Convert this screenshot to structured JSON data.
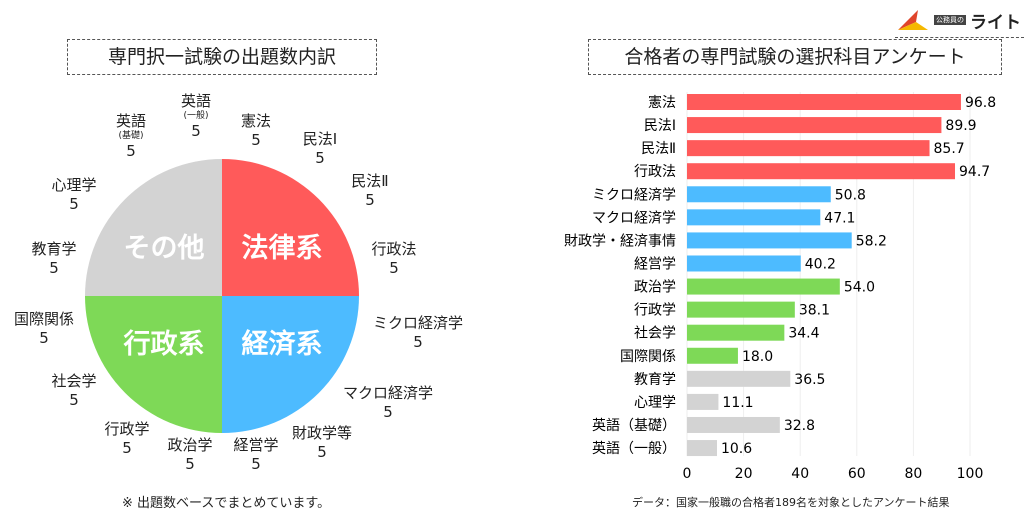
{
  "logo": {
    "small": "公務員の",
    "big": "ライト"
  },
  "left": {
    "title": "専門択一試験の出題数内訳",
    "note": "※ 出題数ベースでまとめています。",
    "quadrants": [
      {
        "label": "法律系",
        "color": "#FF5A5A"
      },
      {
        "label": "経済系",
        "color": "#4DBBFF"
      },
      {
        "label": "行政系",
        "color": "#7ED957"
      },
      {
        "label": "その他",
        "color": "#D3D3D3"
      }
    ],
    "subjects": [
      {
        "name": "英語",
        "sub": "(一般)",
        "count": "5"
      },
      {
        "name": "憲法",
        "count": "5"
      },
      {
        "name": "民法Ⅰ",
        "count": "5"
      },
      {
        "name": "民法Ⅱ",
        "count": "5"
      },
      {
        "name": "行政法",
        "count": "5"
      },
      {
        "name": "ミクロ経済学",
        "count": "5"
      },
      {
        "name": "マクロ経済学",
        "count": "5"
      },
      {
        "name": "財政学等",
        "count": "5"
      },
      {
        "name": "経営学",
        "count": "5"
      },
      {
        "name": "政治学",
        "count": "5"
      },
      {
        "name": "行政学",
        "count": "5"
      },
      {
        "name": "社会学",
        "count": "5"
      },
      {
        "name": "国際関係",
        "count": "5"
      },
      {
        "name": "教育学",
        "count": "5"
      },
      {
        "name": "心理学",
        "count": "5"
      },
      {
        "name": "英語",
        "sub": "(基礎)",
        "count": "5"
      }
    ]
  },
  "chart_data": {
    "type": "bar",
    "orientation": "horizontal",
    "title": "合格者の専門試験の選択科目アンケート",
    "categories": [
      "憲法",
      "民法Ⅰ",
      "民法Ⅱ",
      "行政法",
      "ミクロ経済学",
      "マクロ経済学",
      "財政学・経済事情",
      "経営学",
      "政治学",
      "行政学",
      "社会学",
      "国際関係",
      "教育学",
      "心理学",
      "英語（基礎）",
      "英語（一般）"
    ],
    "values": [
      96.8,
      89.9,
      85.7,
      94.7,
      50.8,
      47.1,
      58.2,
      40.2,
      54.0,
      38.1,
      34.4,
      18.0,
      36.5,
      11.1,
      32.8,
      10.6
    ],
    "value_labels": [
      "96.8",
      "89.9",
      "85.7",
      "94.7",
      "50.8",
      "47.1",
      "58.2",
      "40.2",
      "54.0",
      "38.1",
      "34.4",
      "18.0",
      "36.5",
      "11.1",
      "32.8",
      "10.6"
    ],
    "colors": [
      "#FF5A5A",
      "#FF5A5A",
      "#FF5A5A",
      "#FF5A5A",
      "#4DBBFF",
      "#4DBBFF",
      "#4DBBFF",
      "#4DBBFF",
      "#7ED957",
      "#7ED957",
      "#7ED957",
      "#7ED957",
      "#D3D3D3",
      "#D3D3D3",
      "#D3D3D3",
      "#D3D3D3"
    ],
    "xlim": [
      0,
      100
    ],
    "xticks": [
      "0",
      "20",
      "40",
      "60",
      "80",
      "100"
    ],
    "grid": true,
    "source": "データ：国家一般職の合格者189名を対象としたアンケート結果"
  }
}
